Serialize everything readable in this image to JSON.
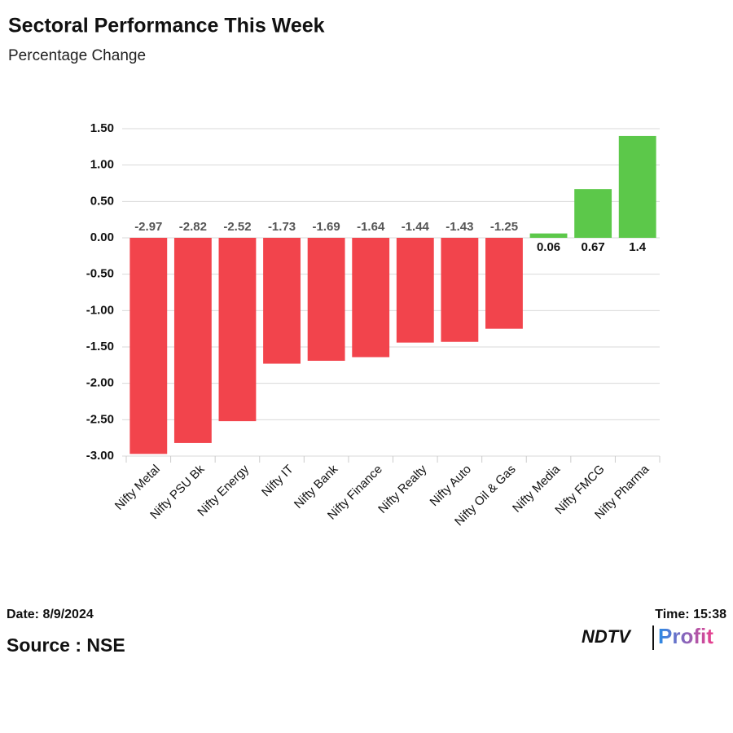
{
  "chart_data": {
    "type": "bar",
    "title": "Sectoral Performance This Week",
    "subtitle": "Percentage Change",
    "categories": [
      "Nifty Metal",
      "Nifty PSU Bk",
      "Nifty Energy",
      "Nifty IT",
      "Nifty Bank",
      "Nifty Finance",
      "Nifty Realty",
      "Nifty Auto",
      "Nifty Oil & Gas",
      "Nifty Media",
      "Nifty FMCG",
      "Nifty Pharma"
    ],
    "values": [
      -2.97,
      -2.82,
      -2.52,
      -1.73,
      -1.69,
      -1.64,
      -1.44,
      -1.43,
      -1.25,
      0.06,
      0.67,
      1.4
    ],
    "colors": [
      "#f2444c",
      "#f2444c",
      "#f2444c",
      "#f2444c",
      "#f2444c",
      "#f2444c",
      "#f2444c",
      "#f2444c",
      "#f2444c",
      "#5cc84a",
      "#5cc84a",
      "#5cc84a"
    ],
    "ylim": [
      -3,
      1.5
    ],
    "yticks": [
      {
        "value": 1.5,
        "label": "1.50"
      },
      {
        "value": 1,
        "label": "1.00"
      },
      {
        "value": 0.5,
        "label": "0.50"
      },
      {
        "value": 0,
        "label": "0.00"
      },
      {
        "value": -0.5,
        "label": "-0.50"
      },
      {
        "value": -1,
        "label": "-1.00"
      },
      {
        "value": -1.5,
        "label": "-1.50"
      },
      {
        "value": -2,
        "label": "-2.00"
      },
      {
        "value": -2.5,
        "label": "-2.50"
      },
      {
        "value": -3,
        "label": "-3.00"
      }
    ],
    "grid": true,
    "date": "Date: 8/9/2024",
    "time": "Time: 15:38",
    "source": "Source : NSE",
    "logo": {
      "left": "NDTV",
      "right": "Profit"
    }
  }
}
